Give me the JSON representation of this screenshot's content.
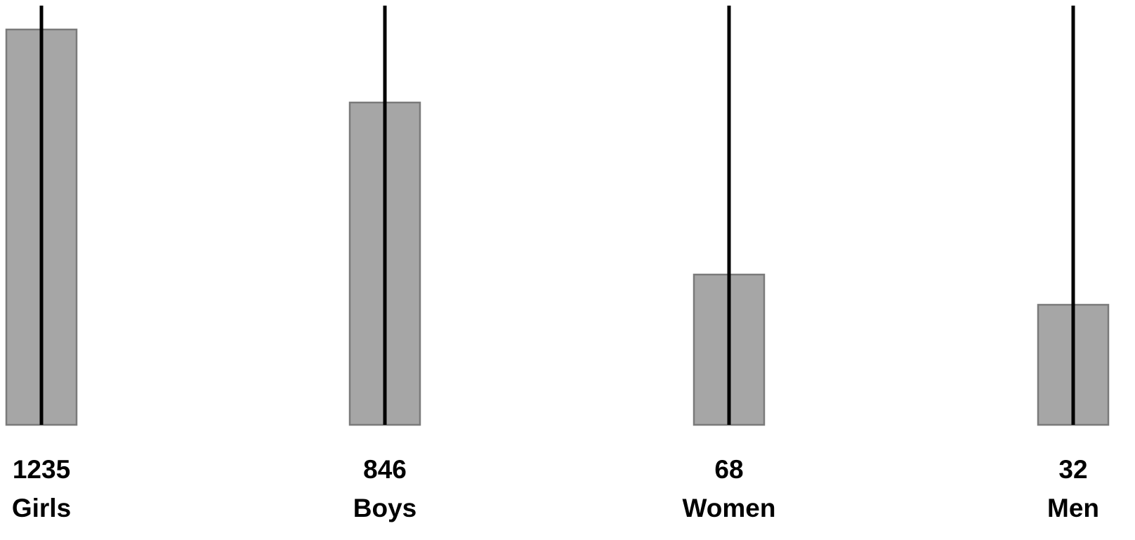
{
  "chart_data": {
    "type": "bar",
    "categories": [
      "Girls",
      "Boys",
      "Women",
      "Men"
    ],
    "values": [
      1235,
      846,
      68,
      32
    ],
    "value_labels": [
      "1235",
      "846",
      "68",
      "32"
    ],
    "title": "",
    "xlabel": "",
    "ylabel": "",
    "grid": false,
    "legend": "none",
    "error_bars": true,
    "colors": {
      "bar_fill": "#a6a6a6",
      "bar_edge": "#7a7a7a",
      "error_bar": "#000000",
      "text": "#000000"
    }
  }
}
